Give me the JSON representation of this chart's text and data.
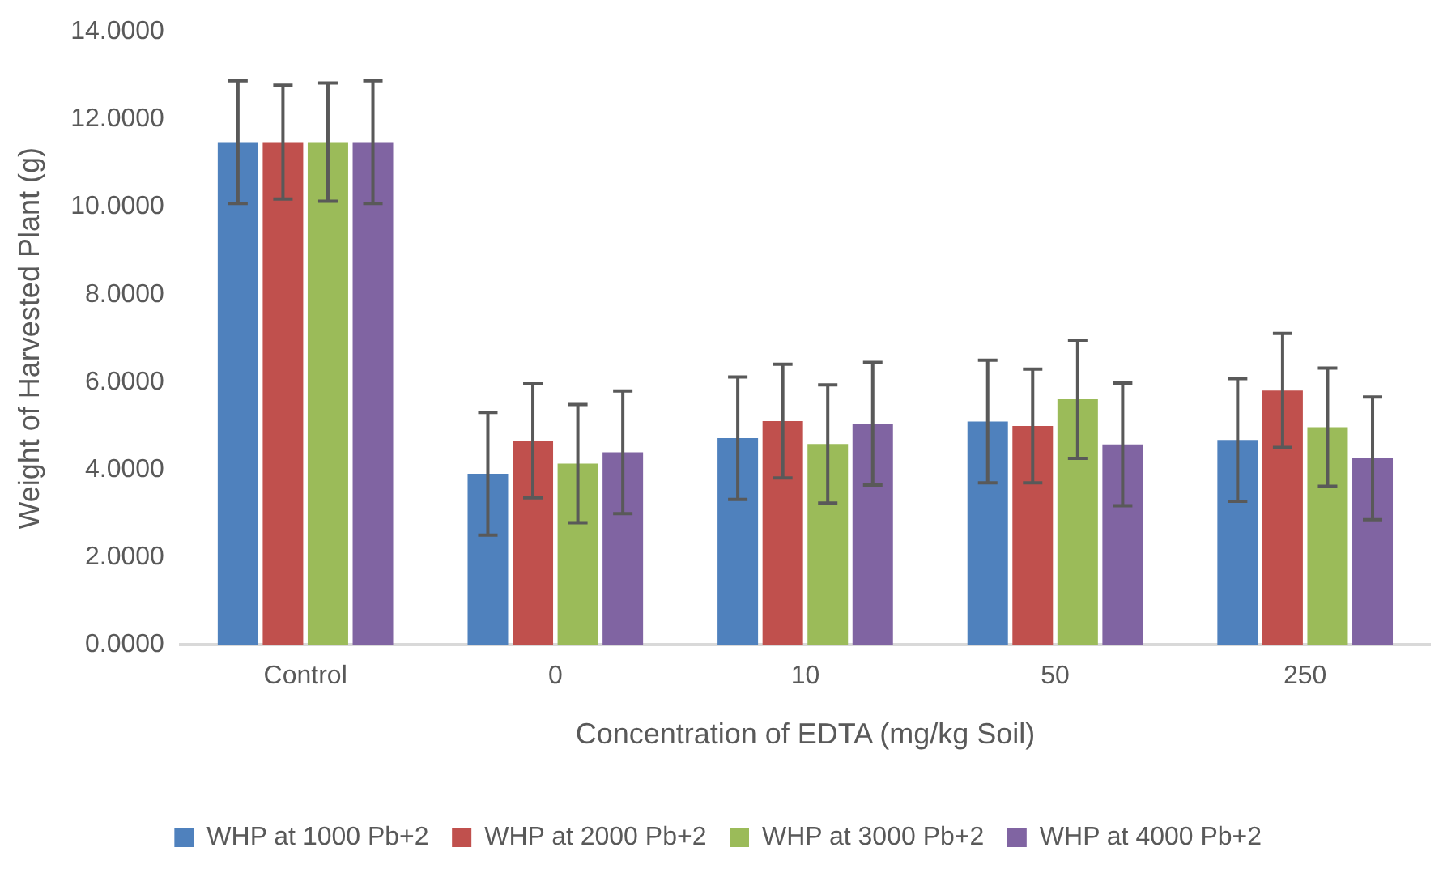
{
  "chart_data": {
    "type": "bar",
    "xlabel": "Concentration of EDTA (mg/kg Soil)",
    "ylabel": "Weight of Harvested Plant (g)",
    "categories": [
      "Control",
      "0",
      "10",
      "50",
      "250"
    ],
    "series": [
      {
        "name": "WHP at 1000 Pb+2",
        "color": "#4f81bd",
        "values": [
          11.48,
          3.91,
          4.72,
          5.1,
          4.68
        ],
        "errors": [
          1.4,
          1.4,
          1.4,
          1.4,
          1.4
        ]
      },
      {
        "name": "WHP at 2000 Pb+2",
        "color": "#c0504d",
        "values": [
          11.48,
          4.66,
          5.11,
          5.0,
          5.81
        ],
        "errors": [
          1.3,
          1.3,
          1.3,
          1.3,
          1.3
        ]
      },
      {
        "name": "WHP at 3000 Pb+2",
        "color": "#9bbb59",
        "values": [
          11.48,
          4.14,
          4.59,
          5.61,
          4.97
        ],
        "errors": [
          1.35,
          1.35,
          1.35,
          1.35,
          1.35
        ]
      },
      {
        "name": "WHP at 4000 Pb+2",
        "color": "#8064a2",
        "values": [
          11.48,
          4.4,
          5.05,
          4.58,
          4.26
        ],
        "errors": [
          1.4,
          1.4,
          1.4,
          1.4,
          1.4
        ]
      }
    ],
    "ylim": [
      0,
      14
    ],
    "yticks": [
      {
        "value": 0,
        "label": "0.0000"
      },
      {
        "value": 2,
        "label": "2.0000"
      },
      {
        "value": 4,
        "label": "4.0000"
      },
      {
        "value": 6,
        "label": "6.0000"
      },
      {
        "value": 8,
        "label": "8.0000"
      },
      {
        "value": 10,
        "label": "10.0000"
      },
      {
        "value": 12,
        "label": "12.0000"
      },
      {
        "value": 14,
        "label": "14.0000"
      }
    ],
    "grid": false,
    "legend": "bottom"
  }
}
